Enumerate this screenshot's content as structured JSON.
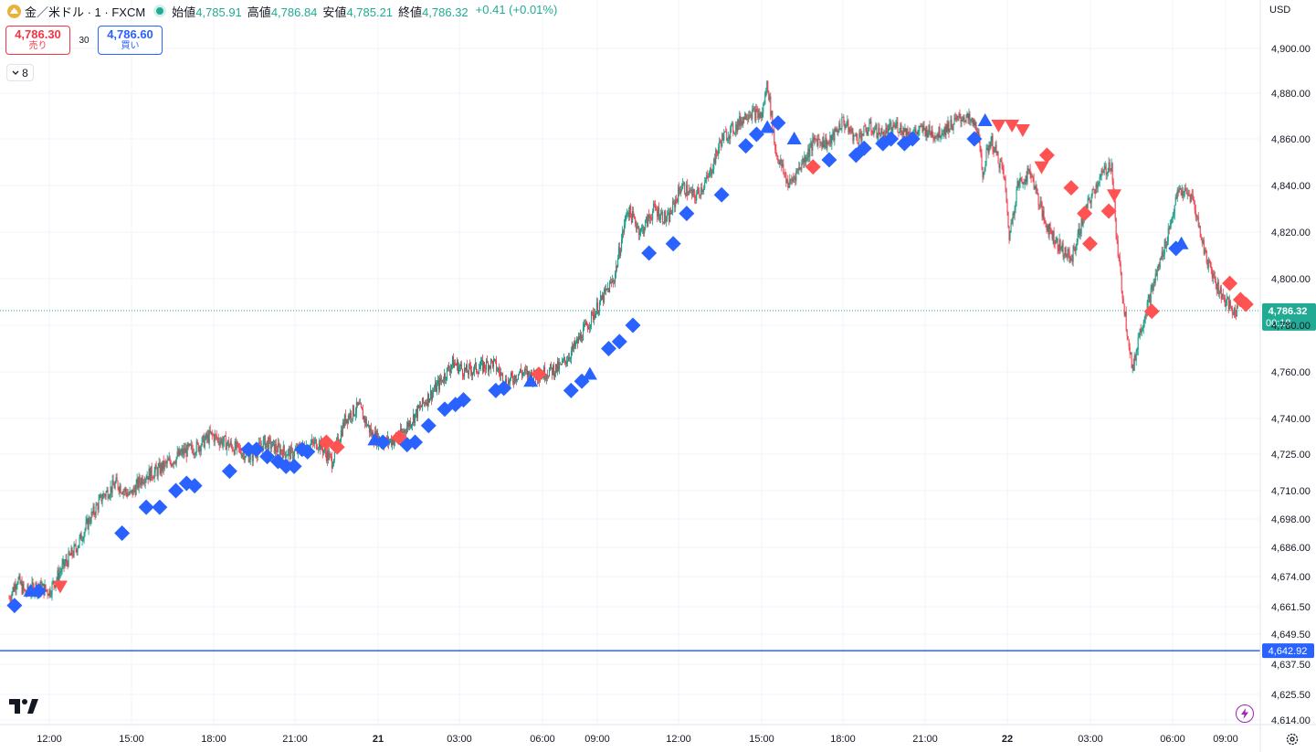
{
  "header": {
    "symbol": "金／米ドル · 1 · FXCM",
    "coin_icon": "gold-coin-icon",
    "status_color": "#22ab94",
    "open_label": "始値",
    "open_value": "4,785.91",
    "high_label": "高値",
    "high_value": "4,786.84",
    "low_label": "安値",
    "low_value": "4,785.21",
    "close_label": "終値",
    "close_value": "4,786.32",
    "change": "+0.41 (+0.01%)"
  },
  "trade": {
    "sell_price": "4,786.30",
    "sell_label": "売り",
    "spread": "30",
    "buy_price": "4,786.60",
    "buy_label": "買い"
  },
  "collapse": {
    "count": "8",
    "icon": "chevron-down-icon"
  },
  "currency": "USD",
  "icons": {
    "logo": "tradingview-logo-icon",
    "flash": "lightning-icon",
    "settings": "gear-icon"
  },
  "colors": {
    "up": "#089981",
    "down": "#f23645",
    "blue": "#2962ff",
    "red_marker": "#ff5252",
    "last_price": "#22ab94"
  },
  "chart_data": {
    "type": "candlestick",
    "x_ticks": [
      "12:00",
      "15:00",
      "18:00",
      "21:00",
      "21",
      "03:00",
      "06:00",
      "09:00",
      "12:00",
      "15:00",
      "18:00",
      "21:00",
      "22",
      "03:00",
      "06:00",
      "09:00"
    ],
    "y_ticks": [
      4614.0,
      4625.5,
      4637.5,
      4649.5,
      4661.5,
      4674.0,
      4686.0,
      4698.0,
      4710.0,
      4725.0,
      4740.0,
      4760.0,
      4780.0,
      4800.0,
      4820.0,
      4840.0,
      4860.0,
      4880.0,
      4900.0
    ],
    "y_tick_labels": [
      "4,614.00",
      "4,625.50",
      "4,637.50",
      "4,649.50",
      "4,661.50",
      "4,674.00",
      "4,686.00",
      "4,698.00",
      "4,710.00",
      "4,725.00",
      "4,740.00",
      "4,760.00",
      "4,780.00",
      "4,800.00",
      "4,820.00",
      "4,840.00",
      "4,860.00",
      "4,880.00",
      "4,900.00"
    ],
    "last_price": {
      "value": 4786.32,
      "label": "4,786.32",
      "countdown": "00:18"
    },
    "horizontal_line": {
      "value": 4642.92,
      "label": "4,642.92"
    },
    "price_path": [
      [
        0.0,
        4665
      ],
      [
        0.3,
        4673
      ],
      [
        0.6,
        4667
      ],
      [
        1.0,
        4670
      ],
      [
        1.5,
        4668
      ],
      [
        2.0,
        4678
      ],
      [
        2.5,
        4686
      ],
      [
        3.0,
        4698
      ],
      [
        3.5,
        4708
      ],
      [
        4.0,
        4713
      ],
      [
        4.5,
        4708
      ],
      [
        5.0,
        4716
      ],
      [
        5.5,
        4718
      ],
      [
        6.0,
        4722
      ],
      [
        6.5,
        4726
      ],
      [
        7.0,
        4728
      ],
      [
        7.5,
        4733
      ],
      [
        8.0,
        4730
      ],
      [
        8.5,
        4727
      ],
      [
        9.0,
        4724
      ],
      [
        9.5,
        4730
      ],
      [
        10.0,
        4727
      ],
      [
        10.5,
        4725
      ],
      [
        11.0,
        4728
      ],
      [
        11.5,
        4730
      ],
      [
        12.0,
        4722
      ],
      [
        12.5,
        4740
      ],
      [
        13.0,
        4745
      ],
      [
        13.5,
        4733
      ],
      [
        14.0,
        4730
      ],
      [
        14.5,
        4732
      ],
      [
        15.0,
        4740
      ],
      [
        15.5,
        4748
      ],
      [
        16.0,
        4755
      ],
      [
        16.5,
        4764
      ],
      [
        17.0,
        4760
      ],
      [
        17.5,
        4762
      ],
      [
        18.0,
        4764
      ],
      [
        18.5,
        4755
      ],
      [
        19.0,
        4760
      ],
      [
        19.5,
        4758
      ],
      [
        20.0,
        4760
      ],
      [
        20.5,
        4762
      ],
      [
        21.0,
        4770
      ],
      [
        21.5,
        4780
      ],
      [
        22.0,
        4790
      ],
      [
        22.5,
        4800
      ],
      [
        23.0,
        4830
      ],
      [
        23.5,
        4820
      ],
      [
        24.0,
        4830
      ],
      [
        24.5,
        4825
      ],
      [
        25.0,
        4840
      ],
      [
        25.5,
        4835
      ],
      [
        26.0,
        4843
      ],
      [
        26.5,
        4860
      ],
      [
        27.0,
        4865
      ],
      [
        27.5,
        4872
      ],
      [
        28.0,
        4870
      ],
      [
        28.2,
        4885
      ],
      [
        28.5,
        4855
      ],
      [
        29.0,
        4840
      ],
      [
        29.5,
        4850
      ],
      [
        30.0,
        4860
      ],
      [
        30.5,
        4858
      ],
      [
        31.0,
        4868
      ],
      [
        31.5,
        4860
      ],
      [
        32.0,
        4865
      ],
      [
        32.5,
        4862
      ],
      [
        33.0,
        4866
      ],
      [
        33.5,
        4862
      ],
      [
        34.0,
        4864
      ],
      [
        34.5,
        4862
      ],
      [
        35.0,
        4866
      ],
      [
        35.5,
        4870
      ],
      [
        36.0,
        4865
      ],
      [
        36.2,
        4845
      ],
      [
        36.5,
        4860
      ],
      [
        37.0,
        4845
      ],
      [
        37.2,
        4818
      ],
      [
        37.5,
        4840
      ],
      [
        38.0,
        4846
      ],
      [
        38.5,
        4825
      ],
      [
        39.0,
        4815
      ],
      [
        39.5,
        4808
      ],
      [
        40.0,
        4828
      ],
      [
        40.5,
        4842
      ],
      [
        41.0,
        4850
      ],
      [
        41.2,
        4815
      ],
      [
        41.5,
        4785
      ],
      [
        41.8,
        4760
      ],
      [
        42.0,
        4775
      ],
      [
        42.5,
        4795
      ],
      [
        43.0,
        4815
      ],
      [
        43.5,
        4838
      ],
      [
        44.0,
        4835
      ],
      [
        44.5,
        4810
      ],
      [
        45.0,
        4795
      ],
      [
        45.5,
        4786
      ]
    ],
    "blue_markers": [
      [
        0.2,
        4662,
        "d"
      ],
      [
        0.8,
        4668,
        "t"
      ],
      [
        1.1,
        4668,
        "d"
      ],
      [
        4.2,
        4692,
        "d"
      ],
      [
        5.1,
        4703,
        "d"
      ],
      [
        5.6,
        4703,
        "d"
      ],
      [
        6.2,
        4710,
        "d"
      ],
      [
        6.6,
        4713,
        "d"
      ],
      [
        6.9,
        4712,
        "d"
      ],
      [
        8.2,
        4718,
        "d"
      ],
      [
        8.9,
        4727,
        "d"
      ],
      [
        9.2,
        4727,
        "d"
      ],
      [
        9.6,
        4724,
        "d"
      ],
      [
        10.0,
        4722,
        "d"
      ],
      [
        10.3,
        4720,
        "d"
      ],
      [
        10.6,
        4720,
        "d"
      ],
      [
        10.9,
        4727,
        "d"
      ],
      [
        11.1,
        4726,
        "d"
      ],
      [
        13.6,
        4731,
        "t"
      ],
      [
        13.9,
        4730,
        "d"
      ],
      [
        14.8,
        4729,
        "d"
      ],
      [
        15.1,
        4730,
        "d"
      ],
      [
        15.6,
        4737,
        "d"
      ],
      [
        16.2,
        4744,
        "d"
      ],
      [
        16.6,
        4746,
        "d"
      ],
      [
        16.9,
        4748,
        "d"
      ],
      [
        18.1,
        4752,
        "d"
      ],
      [
        18.4,
        4753,
        "d"
      ],
      [
        19.4,
        4756,
        "t"
      ],
      [
        20.9,
        4752,
        "d"
      ],
      [
        21.3,
        4756,
        "d"
      ],
      [
        21.6,
        4759,
        "t"
      ],
      [
        22.3,
        4770,
        "d"
      ],
      [
        22.7,
        4773,
        "d"
      ],
      [
        23.2,
        4780,
        "d"
      ],
      [
        23.8,
        4811,
        "d"
      ],
      [
        24.7,
        4815,
        "d"
      ],
      [
        25.2,
        4828,
        "d"
      ],
      [
        26.5,
        4836,
        "d"
      ],
      [
        27.4,
        4857,
        "d"
      ],
      [
        27.8,
        4862,
        "d"
      ],
      [
        28.2,
        4865,
        "t"
      ],
      [
        28.6,
        4867,
        "d"
      ],
      [
        29.2,
        4860,
        "t"
      ],
      [
        30.5,
        4851,
        "d"
      ],
      [
        31.5,
        4853,
        "d"
      ],
      [
        31.8,
        4856,
        "d"
      ],
      [
        32.5,
        4858,
        "d"
      ],
      [
        32.8,
        4860,
        "d"
      ],
      [
        33.3,
        4858,
        "d"
      ],
      [
        33.6,
        4860,
        "d"
      ],
      [
        35.9,
        4860,
        "d"
      ],
      [
        36.3,
        4868,
        "t"
      ],
      [
        43.4,
        4813,
        "d"
      ],
      [
        43.6,
        4815,
        "t"
      ]
    ],
    "red_markers": [
      [
        1.9,
        4670,
        "v"
      ],
      [
        11.8,
        4730,
        "d"
      ],
      [
        12.2,
        4728,
        "d"
      ],
      [
        19.7,
        4759,
        "d"
      ],
      [
        29.9,
        4848,
        "d"
      ],
      [
        14.5,
        4732,
        "d"
      ],
      [
        36.8,
        4866,
        "v"
      ],
      [
        37.3,
        4866,
        "v"
      ],
      [
        37.7,
        4864,
        "v"
      ],
      [
        38.6,
        4853,
        "d"
      ],
      [
        38.4,
        4848,
        "v"
      ],
      [
        39.5,
        4839,
        "d"
      ],
      [
        40.0,
        4828,
        "d"
      ],
      [
        40.2,
        4815,
        "d"
      ],
      [
        40.9,
        4829,
        "d"
      ],
      [
        41.1,
        4836,
        "v"
      ],
      [
        42.5,
        4786,
        "d"
      ],
      [
        45.4,
        4798,
        "d"
      ],
      [
        45.8,
        4791,
        "d"
      ],
      [
        46.0,
        4789,
        "d"
      ]
    ]
  }
}
